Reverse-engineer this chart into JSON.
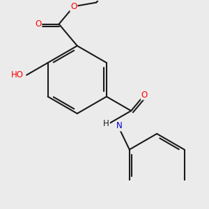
{
  "bg_color": "#ebebeb",
  "bond_color": "#1a1a1a",
  "bond_width": 1.5,
  "dbo": 0.045,
  "atom_colors": {
    "O": "#ff0000",
    "N": "#0000cc",
    "Cl": "#008000",
    "C": "#1a1a1a"
  },
  "fs": 8.5,
  "figsize": [
    3.0,
    3.0
  ],
  "dpi": 100
}
